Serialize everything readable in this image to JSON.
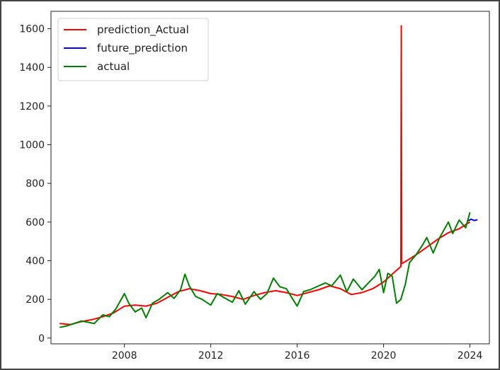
{
  "chart_data": {
    "type": "line",
    "title": "",
    "xlabel": "",
    "ylabel": "",
    "xlim": [
      2004.6,
      2024.9
    ],
    "ylim": [
      -30,
      1690
    ],
    "xticks": [
      2008,
      2012,
      2016,
      2020,
      2024
    ],
    "yticks": [
      0,
      200,
      400,
      600,
      800,
      1000,
      1200,
      1400,
      1600
    ],
    "grid": false,
    "legend_position": "top-left",
    "series": [
      {
        "name": "prediction_Actual",
        "color": "#ff0000",
        "x": [
          2005.0,
          2005.5,
          2006.0,
          2006.5,
          2007.0,
          2007.5,
          2008.0,
          2008.5,
          2009.0,
          2009.5,
          2010.0,
          2010.5,
          2011.0,
          2011.5,
          2012.0,
          2012.5,
          2013.0,
          2013.5,
          2014.0,
          2014.5,
          2015.0,
          2015.5,
          2016.0,
          2016.5,
          2017.0,
          2017.5,
          2018.0,
          2018.5,
          2019.0,
          2019.5,
          2020.0,
          2020.5,
          2020.8,
          2020.82,
          2020.84,
          2021.0,
          2021.5,
          2022.0,
          2022.5,
          2023.0,
          2023.5,
          2024.0
        ],
        "y": [
          75,
          70,
          85,
          95,
          110,
          130,
          165,
          170,
          165,
          180,
          210,
          240,
          255,
          245,
          230,
          225,
          215,
          200,
          220,
          235,
          245,
          235,
          220,
          235,
          250,
          270,
          255,
          225,
          235,
          255,
          290,
          340,
          370,
          1615,
          385,
          395,
          430,
          470,
          510,
          545,
          565,
          600
        ]
      },
      {
        "name": "future_prediction",
        "color": "#0000ff",
        "x": [
          2023.9,
          2024.05,
          2024.2,
          2024.35
        ],
        "y": [
          605,
          615,
          608,
          612
        ]
      },
      {
        "name": "actual",
        "color": "#008000",
        "x": [
          2005.0,
          2005.3,
          2005.6,
          2006.0,
          2006.3,
          2006.6,
          2007.0,
          2007.3,
          2007.6,
          2008.0,
          2008.2,
          2008.5,
          2008.8,
          2009.0,
          2009.3,
          2009.6,
          2010.0,
          2010.3,
          2010.6,
          2010.8,
          2011.0,
          2011.3,
          2011.6,
          2012.0,
          2012.3,
          2012.6,
          2013.0,
          2013.3,
          2013.6,
          2014.0,
          2014.3,
          2014.6,
          2014.9,
          2015.2,
          2015.5,
          2015.8,
          2016.0,
          2016.3,
          2016.6,
          2017.0,
          2017.3,
          2017.6,
          2018.0,
          2018.3,
          2018.6,
          2019.0,
          2019.3,
          2019.6,
          2019.8,
          2020.0,
          2020.2,
          2020.4,
          2020.6,
          2020.8,
          2021.0,
          2021.2,
          2021.5,
          2021.8,
          2022.0,
          2022.3,
          2022.6,
          2023.0,
          2023.2,
          2023.5,
          2023.8,
          2024.0
        ],
        "y": [
          55,
          62,
          72,
          88,
          82,
          75,
          120,
          110,
          150,
          230,
          180,
          135,
          155,
          105,
          180,
          200,
          235,
          205,
          250,
          330,
          270,
          215,
          200,
          170,
          230,
          210,
          185,
          245,
          175,
          240,
          200,
          230,
          310,
          265,
          255,
          200,
          165,
          240,
          250,
          270,
          285,
          270,
          325,
          240,
          305,
          250,
          285,
          320,
          355,
          235,
          335,
          320,
          180,
          200,
          275,
          390,
          430,
          480,
          520,
          440,
          520,
          600,
          540,
          610,
          570,
          650
        ]
      }
    ]
  }
}
